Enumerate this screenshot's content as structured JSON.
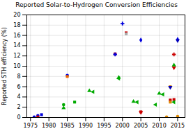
{
  "chart_data": {
    "type": "scatter",
    "title": "Reported Solar-to-Hydrogen Conversion Efficiencies",
    "ylabel": "Reported STH efficiency (%)",
    "xlim": [
      1974,
      2017
    ],
    "ylim": [
      0,
      20
    ],
    "xticks": [
      1975,
      1980,
      1985,
      1990,
      1995,
      2000,
      2005,
      2010,
      2015
    ],
    "yticks": [
      0,
      2,
      4,
      6,
      8,
      10,
      12,
      14,
      16,
      18,
      20
    ],
    "grid": true,
    "x": [
      1976,
      1977,
      1977,
      1978,
      1984,
      1984,
      1985,
      1985,
      1987,
      1991,
      1992,
      1998,
      1998,
      1999,
      1999,
      2000,
      2001,
      2001,
      2003,
      2004,
      2005,
      2005,
      2005,
      2009,
      2010,
      2011,
      2012,
      2013,
      2013,
      2013,
      2013,
      2014,
      2014,
      2014,
      2014,
      2014,
      2015,
      2015,
      2015
    ],
    "values": [
      0.1,
      0.35,
      0.1,
      0.55,
      1.85,
      2.5,
      8.2,
      8.0,
      3.0,
      5.2,
      5.0,
      12.4,
      12.3,
      7.8,
      7.6,
      18.3,
      16.5,
      16.3,
      3.1,
      3.0,
      15.1,
      1.1,
      1.0,
      2.5,
      4.7,
      4.5,
      0.1,
      5.9,
      6.0,
      3.4,
      3.0,
      10.2,
      9.7,
      3.5,
      3.0,
      12.3,
      15.0,
      15.2,
      0.2
    ],
    "colors": [
      "#0000dd",
      "#0000dd",
      "#cc0000",
      "#0000dd",
      "#00aa00",
      "#00aa00",
      "#0000dd",
      "#ee6600",
      "#00aa00",
      "#00aa00",
      "#00aa00",
      "#cc0000",
      "#0000dd",
      "#00aa00",
      "#00aa00",
      "#0000dd",
      "#cc0000",
      "#aaaaaa",
      "#00aa00",
      "#00aa00",
      "#0000dd",
      "#cc0000",
      "#cc0000",
      "#00aa00",
      "#00aa00",
      "#00aa00",
      "#dd8800",
      "#0000bb",
      "#dd8800",
      "#cc0000",
      "#dd8800",
      "#00aa00",
      "#cc0000",
      "#cc0000",
      "#00aa00",
      "#cc0000",
      "#0000bb",
      "#0000dd",
      "#dd8800"
    ],
    "markers": [
      "circle",
      "circle",
      "square",
      "square",
      "triangle-up",
      "circle",
      "circle",
      "square",
      "square",
      "triangle-up",
      "triangle-left",
      "square",
      "plus",
      "triangle-up",
      "triangle-left",
      "plus",
      "square",
      "square",
      "triangle-up",
      "triangle-left",
      "diamond",
      "square",
      "triangle-down",
      "triangle-left",
      "triangle-up",
      "triangle-left",
      "circle",
      "triangle-down",
      "square",
      "square",
      "square",
      "triangle-up",
      "triangle-down",
      "square",
      "triangle-left",
      "plus",
      "triangle-down",
      "diamond",
      "circle"
    ]
  }
}
